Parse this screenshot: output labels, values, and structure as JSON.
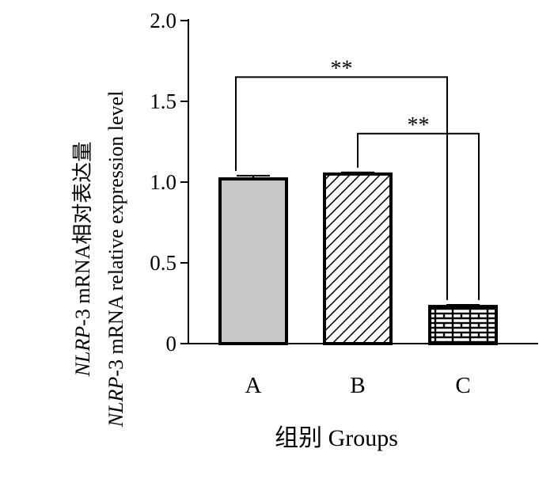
{
  "chart_data": {
    "type": "bar",
    "title": "",
    "categories": [
      "A",
      "B",
      "C"
    ],
    "values": [
      1.02,
      1.05,
      0.23
    ],
    "errors": [
      0.02,
      0.01,
      0.01
    ],
    "fills": [
      "solid-gray",
      "diagonal-hatch",
      "brick"
    ],
    "ylabel": {
      "line1_italic": "NLRP",
      "line1_rest": "-3 mRNA相对表达量",
      "line2_italic": "NLRP",
      "line2_rest": "-3 mRNA relative expression level"
    },
    "xlabel": "组别 Groups",
    "ylim": [
      0,
      2.0
    ],
    "yticks": [
      {
        "value": 0,
        "label": "0"
      },
      {
        "value": 0.5,
        "label": "0.5"
      },
      {
        "value": 1.0,
        "label": "1.0"
      },
      {
        "value": 1.5,
        "label": "1.5"
      },
      {
        "value": 2.0,
        "label": "2.0"
      }
    ],
    "significance": [
      {
        "from": "A",
        "to": "C",
        "label": "**",
        "level": 1.65
      },
      {
        "from": "B",
        "to": "C",
        "label": "**",
        "level": 1.3
      }
    ],
    "grid": false,
    "legend": "none",
    "colors": {
      "bar_gray": "#c8c8c8",
      "stroke": "#000000",
      "background": "#ffffff"
    }
  }
}
